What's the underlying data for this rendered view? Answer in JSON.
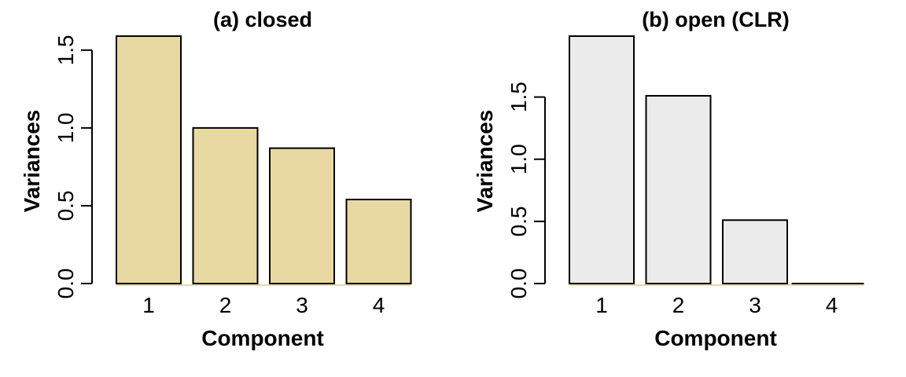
{
  "chart_data": [
    {
      "type": "bar",
      "title": "(a) closed",
      "xlabel": "Component",
      "ylabel": "Variances",
      "categories": [
        "1",
        "2",
        "3",
        "4"
      ],
      "values": [
        1.59,
        1.0,
        0.87,
        0.54
      ],
      "yticks": [
        "0.0",
        "0.5",
        "1.0",
        "1.5"
      ],
      "ytick_values": [
        0,
        0.5,
        1.0,
        1.5
      ],
      "ylim": [
        0,
        1.59
      ],
      "bar_color": "#E8D9A3",
      "baseline_color": "#E8D9A3",
      "grid": false,
      "legend": "none"
    },
    {
      "type": "bar",
      "title": "(b) open (CLR)",
      "xlabel": "Component",
      "ylabel": "Variances",
      "categories": [
        "1",
        "2",
        "3",
        "4"
      ],
      "values": [
        1.99,
        1.51,
        0.51,
        0.0
      ],
      "yticks": [
        "0.0",
        "0.5",
        "1.0",
        "1.5"
      ],
      "ytick_values": [
        0,
        0.5,
        1.0,
        1.5
      ],
      "ylim": [
        0,
        1.99
      ],
      "bar_color": "#EBEBEB",
      "baseline_color": "#E8D9A3",
      "grid": false,
      "legend": "none"
    }
  ]
}
